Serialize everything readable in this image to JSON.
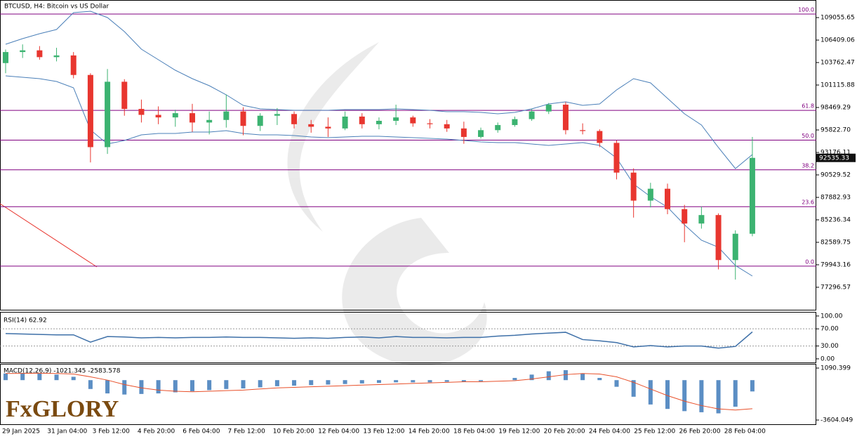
{
  "logo": "FxGLORY",
  "chart_data": [
    {
      "type": "candlestick",
      "title": "BTCUSD, H4:  Bitcoin vs US Dollar",
      "ylim": [
        74728,
        111129
      ],
      "yticks": [
        109055.65,
        106409.06,
        103762.47,
        101115.88,
        98469.29,
        {
          "value": 95822.7,
          "label": "95822.70"
        },
        93176.11,
        90529.52,
        87882.93,
        85236.34,
        82589.75,
        79943.16,
        77296.57
      ],
      "current_price": 92535.33,
      "up_color": "#3cb371",
      "down_color": "#e8362f",
      "open": [
        103700,
        105000,
        105200,
        104400,
        104600,
        102300,
        93800,
        101500,
        98300,
        97600,
        97300,
        97800,
        96700,
        97000,
        98000,
        96300,
        97500,
        97700,
        96500,
        96200,
        96000,
        97400,
        96500,
        96900,
        97300,
        96600,
        96500,
        96000,
        95000,
        95800,
        96400,
        97100,
        98000,
        98800,
        95800,
        95700,
        94300,
        90800,
        87500,
        88900,
        86500,
        84800,
        85800,
        80500,
        83600
      ],
      "high": [
        105300,
        105900,
        105700,
        105500,
        105000,
        102500,
        103000,
        101800,
        99400,
        98600,
        98200,
        98900,
        98000,
        100000,
        98500,
        97800,
        98400,
        98000,
        97000,
        97300,
        98000,
        97800,
        97300,
        98800,
        97500,
        97100,
        97000,
        96800,
        96100,
        96700,
        97400,
        98300,
        99000,
        99100,
        96600,
        95900,
        94600,
        91300,
        89600,
        89500,
        87000,
        86800,
        86000,
        84000,
        95000
      ],
      "low": [
        102500,
        104300,
        104100,
        103900,
        101900,
        92000,
        93000,
        97500,
        96700,
        96500,
        96200,
        95600,
        95300,
        96100,
        95200,
        95700,
        96400,
        96000,
        95500,
        95000,
        95800,
        96000,
        95900,
        96400,
        96200,
        96000,
        95600,
        94200,
        94800,
        95500,
        96200,
        96900,
        97700,
        95300,
        95300,
        93800,
        90000,
        85500,
        86700,
        85900,
        82600,
        84200,
        79400,
        78200,
        83300
      ],
      "close": [
        105000,
        105200,
        104400,
        104600,
        102300,
        93800,
        101500,
        98300,
        97600,
        97300,
        97800,
        96700,
        97000,
        98000,
        96300,
        97500,
        97700,
        96500,
        96200,
        96000,
        97400,
        96500,
        96900,
        97300,
        96600,
        96500,
        96000,
        95000,
        95800,
        96400,
        97100,
        98000,
        98800,
        95800,
        95700,
        94300,
        90800,
        87500,
        88900,
        86500,
        84800,
        85800,
        80500,
        83600,
        92535.33
      ],
      "bands": [
        {
          "color": "#4a7fb8",
          "values": [
            105917,
            106579,
            107158,
            107654,
            109640,
            109805,
            109061,
            107406,
            105338,
            104097,
            102856,
            101863,
            101036,
            99960,
            98720,
            98306,
            98223,
            98140,
            98140,
            98140,
            98223,
            98223,
            98223,
            98306,
            98223,
            98140,
            97975,
            97975,
            97892,
            97727,
            97892,
            98306,
            98885,
            99133,
            98720,
            98885,
            100539,
            101863,
            101367,
            99547,
            97727,
            96403,
            93756,
            91274,
            92929
          ]
        },
        {
          "color": "#4a7fb8",
          "values": [
            102194,
            102029,
            101863,
            101532,
            100788,
            95824,
            94169,
            94583,
            95245,
            95410,
            95410,
            95576,
            95576,
            95741,
            95410,
            95245,
            95245,
            95162,
            94997,
            94914,
            94997,
            95080,
            95080,
            94997,
            94914,
            94831,
            94749,
            94583,
            94417,
            94335,
            94335,
            94169,
            94004,
            94169,
            94335,
            94004,
            92515,
            89454,
            87965,
            86724,
            84656,
            82836,
            82009,
            79858,
            78617
          ]
        }
      ],
      "fib_color": "#800080",
      "fib_levels": [
        {
          "value": 109470,
          "label": "100.0"
        },
        {
          "value": 98130,
          "label": "61.8"
        },
        {
          "value": 94627,
          "label": "50.0"
        },
        {
          "value": 91125,
          "label": "38.2"
        },
        {
          "value": 86791,
          "label": "23.6"
        },
        {
          "value": 79785,
          "label": "0.0"
        }
      ],
      "x_labels": [
        "29 Jan 2025",
        "31 Jan 04:00",
        "3 Feb 12:00",
        "4 Feb 20:00",
        "6 Feb 04:00",
        "7 Feb 12:00",
        "10 Feb 20:00",
        "12 Feb 04:00",
        "13 Feb 12:00",
        "14 Feb 20:00",
        "18 Feb 04:00",
        "19 Feb 12:00",
        "20 Feb 20:00",
        "24 Feb 04:00",
        "25 Feb 12:00",
        "26 Feb 20:00",
        "28 Feb 04:00"
      ]
    },
    {
      "type": "line",
      "title": "RSI(14) 62.92",
      "ylim": [
        -10,
        108
      ],
      "yticks": [
        {
          "value": 100,
          "label": "100.00"
        },
        {
          "value": 70,
          "label": "70.00"
        },
        {
          "value": 30,
          "label": "30.00"
        },
        {
          "value": 0,
          "label": "0.00"
        }
      ],
      "levels": [
        70,
        30
      ],
      "color": "#3e70a8",
      "values": [
        59,
        58,
        57,
        56,
        56,
        39,
        52,
        51,
        49,
        50,
        49,
        50,
        50,
        51,
        50,
        50,
        49,
        48,
        49,
        48,
        50,
        51,
        49,
        52,
        50,
        50,
        49,
        50,
        50,
        53,
        55,
        58,
        60,
        62,
        45,
        42,
        38,
        28,
        31,
        28,
        30,
        30,
        25,
        29,
        62.92
      ]
    },
    {
      "type": "bar",
      "title": "MACD(12,26,9) -1021.345 -2583.578",
      "ylim": [
        -4048,
        1408
      ],
      "yticks": [
        1090.399,
        -3604.049
      ],
      "series": [
        {
          "kind": "bar",
          "color": "#5b8ec4",
          "values": [
            600,
            650,
            600,
            500,
            300,
            -800,
            -1200,
            -1300,
            -1250,
            -1200,
            -1100,
            -1000,
            -900,
            -800,
            -750,
            -650,
            -550,
            -500,
            -450,
            -400,
            -350,
            -300,
            -250,
            -200,
            -200,
            -200,
            -150,
            -150,
            -100,
            0,
            200,
            500,
            800,
            900,
            600,
            200,
            -600,
            -1500,
            -2200,
            -2600,
            -2800,
            -2900,
            -3000,
            -2400,
            -1021.345
          ]
        },
        {
          "kind": "line",
          "color": "#e8502a",
          "values": [
            600,
            610,
            620,
            600,
            550,
            300,
            0,
            -400,
            -700,
            -900,
            -1000,
            -1050,
            -1000,
            -950,
            -900,
            -800,
            -700,
            -650,
            -600,
            -550,
            -500,
            -450,
            -400,
            -350,
            -300,
            -250,
            -200,
            -150,
            -150,
            -100,
            -50,
            100,
            300,
            500,
            600,
            550,
            300,
            -200,
            -800,
            -1400,
            -1900,
            -2300,
            -2600,
            -2700,
            -2583.578
          ]
        }
      ]
    }
  ]
}
